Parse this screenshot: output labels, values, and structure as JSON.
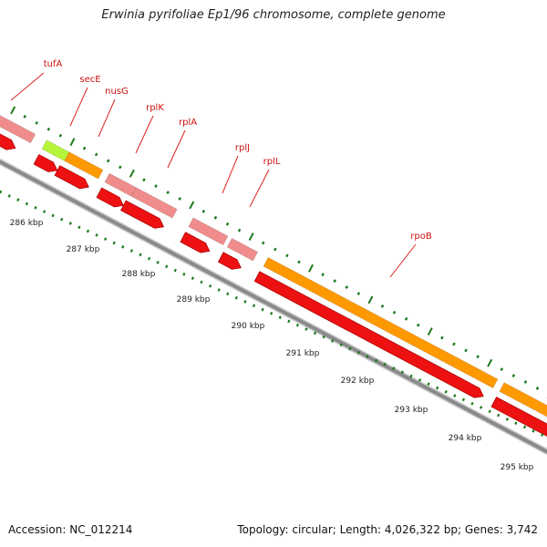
{
  "title": "Erwinia pyrifoliae Ep1/96 chromosome, complete genome",
  "footer": {
    "accession": "Accession: NC_012214",
    "summary": "Topology: circular; Length: 4,026,322 bp; Genes: 3,742"
  },
  "colors": {
    "backbone": "#8a8a8a",
    "gene_pink": "#f08c8c",
    "gene_orange": "#ff9900",
    "gene_lime": "#b6f53a",
    "cds_red": "#ee1111",
    "tick_green": "#1b7a1b",
    "label_red": "#cc1111",
    "label_line": "#dd2222"
  },
  "scale_labels": [
    "286 kbp",
    "287 kbp",
    "288 kbp",
    "289 kbp",
    "290 kbp",
    "291 kbp",
    "292 kbp",
    "293 kbp",
    "294 kbp",
    "295 kbp"
  ],
  "gene_labels": [
    "tufA",
    "secE",
    "nusG",
    "rplK",
    "rplA",
    "rplJ",
    "rplL",
    "rpoB"
  ]
}
